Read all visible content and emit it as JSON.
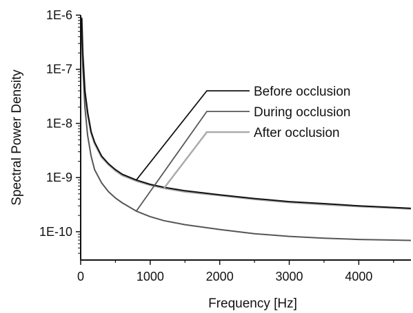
{
  "chart_data": {
    "type": "line",
    "title": "",
    "xlabel": "Frequency [Hz]",
    "ylabel": "Spectral Power Density",
    "xlim": [
      0,
      4750
    ],
    "ylim": [
      3e-11,
      1e-06
    ],
    "yscale": "log",
    "grid": false,
    "legend_placement": "top-right",
    "x_ticks": [
      0,
      1000,
      2000,
      3000,
      4000
    ],
    "x_tick_labels": [
      "0",
      "1000",
      "2000",
      "3000",
      "4000"
    ],
    "y_ticks": [
      1e-10,
      1e-09,
      1e-08,
      1e-07,
      1e-06
    ],
    "y_tick_labels": [
      "1E-10",
      "1E-9",
      "1E-8",
      "1E-7",
      "1E-6"
    ],
    "series": [
      {
        "name": "Before occlusion",
        "color": "#111111",
        "x": [
          15,
          30,
          60,
          100,
          150,
          200,
          300,
          400,
          500,
          600,
          800,
          1000,
          1200,
          1500,
          2000,
          2500,
          3000,
          3500,
          4000,
          4500,
          4750
        ],
        "y": [
          9e-07,
          2e-07,
          4e-08,
          1.6e-08,
          7e-09,
          4.5e-09,
          2.5e-09,
          1.8e-09,
          1.4e-09,
          1.15e-09,
          9e-10,
          7.5e-10,
          6.6e-10,
          5.7e-10,
          4.8e-10,
          4.1e-10,
          3.6e-10,
          3.3e-10,
          3e-10,
          2.8e-10,
          2.7e-10
        ]
      },
      {
        "name": "During occlusion",
        "color": "#555555",
        "x": [
          15,
          30,
          60,
          100,
          150,
          200,
          300,
          400,
          500,
          600,
          800,
          1000,
          1200,
          1500,
          2000,
          2500,
          3000,
          3500,
          4000,
          4500,
          4750
        ],
        "y": [
          6e-07,
          1.2e-07,
          2e-08,
          6e-09,
          2.5e-09,
          1.4e-09,
          8e-10,
          5.5e-10,
          4.2e-10,
          3.4e-10,
          2.4e-10,
          1.9e-10,
          1.6e-10,
          1.35e-10,
          1.1e-10,
          9.2e-11,
          8.2e-11,
          7.6e-11,
          7.2e-11,
          7e-11,
          6.9e-11
        ]
      },
      {
        "name": "After    occlusion",
        "color": "#aaaaaa",
        "x": [
          15,
          30,
          60,
          100,
          150,
          200,
          300,
          400,
          500,
          600,
          800,
          1000,
          1200,
          1500,
          2000,
          2500,
          3000,
          3500,
          4000,
          4500,
          4750
        ],
        "y": [
          8.5e-07,
          1.9e-07,
          3.8e-08,
          1.5e-08,
          6.8e-09,
          4.3e-09,
          2.4e-09,
          1.75e-09,
          1.35e-09,
          1.1e-09,
          8.7e-10,
          7.3e-10,
          6.4e-10,
          5.5e-10,
          4.7e-10,
          4e-10,
          3.5e-10,
          3.2e-10,
          2.95e-10,
          2.75e-10,
          2.65e-10
        ]
      }
    ]
  }
}
